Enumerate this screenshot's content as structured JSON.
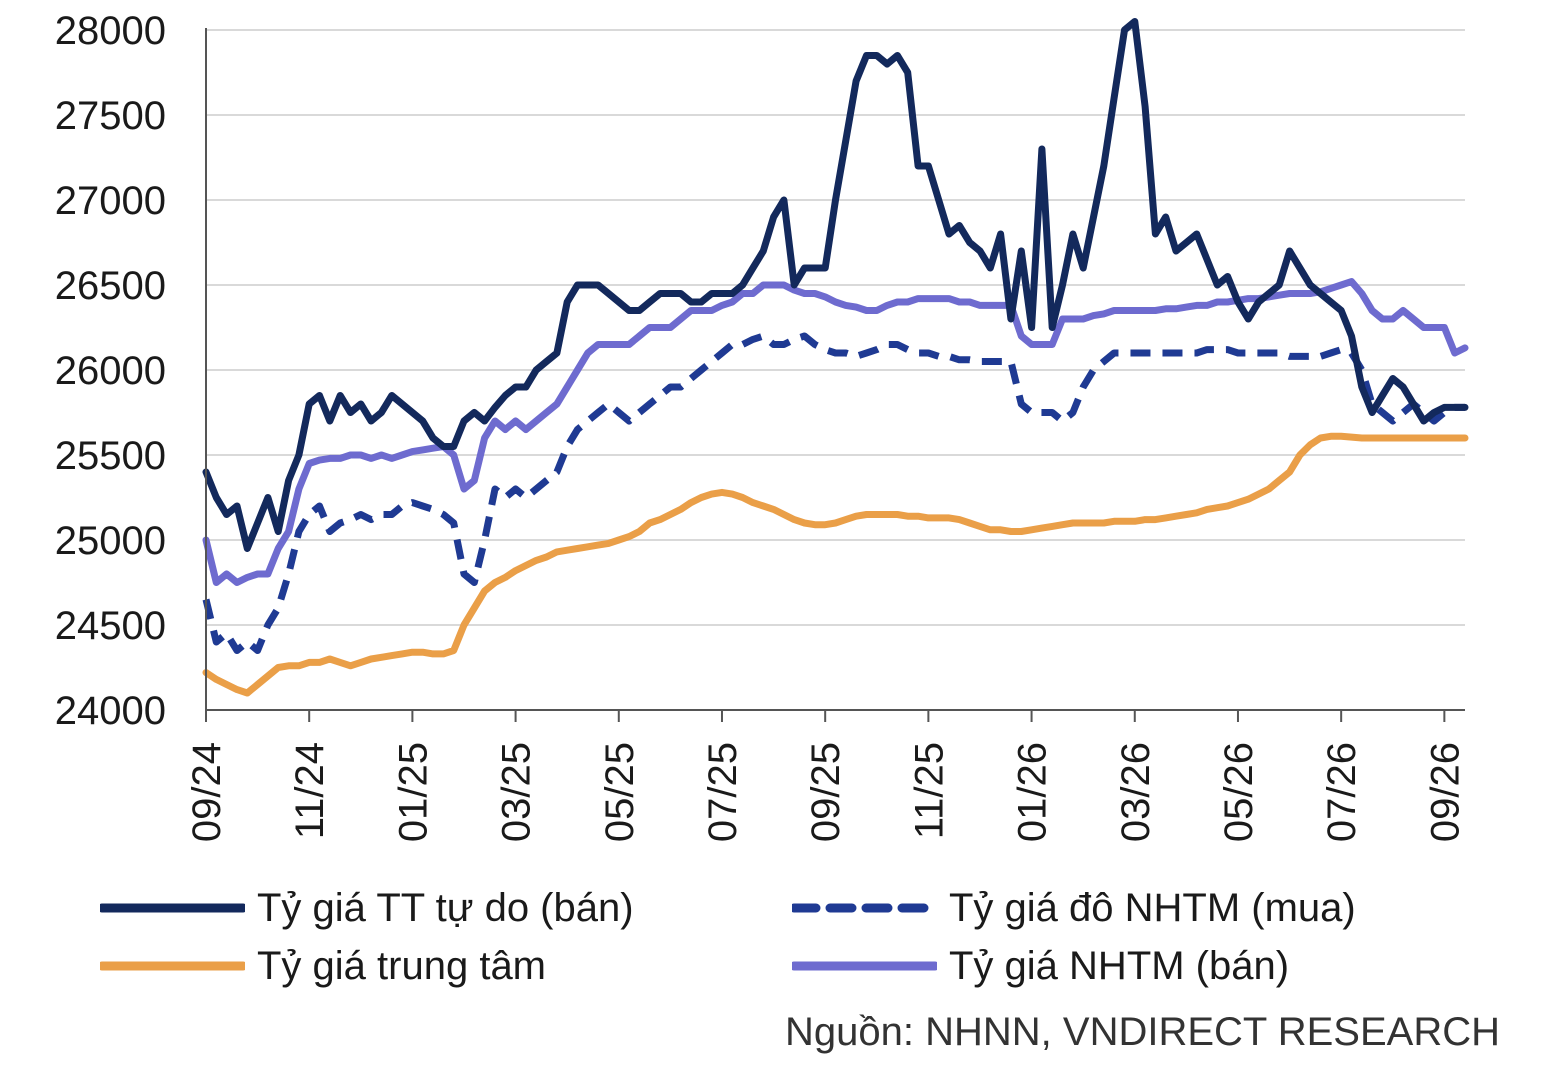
{
  "chart_data": {
    "type": "line",
    "title": "",
    "xlabel": "",
    "ylabel": "",
    "ylim": [
      24000,
      28000
    ],
    "yticks": [
      24000,
      24500,
      25000,
      25500,
      26000,
      26500,
      27000,
      27500,
      28000
    ],
    "xticks": [
      "09/24",
      "11/24",
      "01/25",
      "03/25",
      "05/25",
      "07/25",
      "09/25",
      "11/25",
      "01/26",
      "03/26",
      "05/26",
      "07/26",
      "09/26"
    ],
    "xrange_months": [
      0,
      24.4
    ],
    "grid": "horizontal",
    "legend_position": "bottom",
    "series": [
      {
        "name": "Tỷ giá TT tự do (bán)",
        "color": "#13295c",
        "style": "solid",
        "x": [
          0,
          0.2,
          0.4,
          0.6,
          0.8,
          1.0,
          1.2,
          1.4,
          1.6,
          1.8,
          2.0,
          2.2,
          2.4,
          2.6,
          2.8,
          3.0,
          3.2,
          3.4,
          3.6,
          3.8,
          4.0,
          4.2,
          4.4,
          4.6,
          4.8,
          5.0,
          5.2,
          5.4,
          5.6,
          5.8,
          6.0,
          6.2,
          6.4,
          6.6,
          6.8,
          7.0,
          7.2,
          7.4,
          7.6,
          7.8,
          8.0,
          8.2,
          8.4,
          8.6,
          8.8,
          9.0,
          9.2,
          9.4,
          9.6,
          9.8,
          10.0,
          10.2,
          10.4,
          10.6,
          10.8,
          11.0,
          11.2,
          11.4,
          11.6,
          11.8,
          12.0,
          12.2,
          12.4,
          12.6,
          12.8,
          13.0,
          13.2,
          13.4,
          13.6,
          13.8,
          14.0,
          14.2,
          14.4,
          14.6,
          14.8,
          15.0,
          15.2,
          15.4,
          15.6,
          15.8,
          16.0,
          16.2,
          16.4,
          16.6,
          16.8,
          17.0,
          17.2,
          17.4,
          17.6,
          17.8,
          18.0,
          18.2,
          18.4,
          18.6,
          18.8,
          19.0,
          19.2,
          19.4,
          19.6,
          19.8,
          20.0,
          20.2,
          20.4,
          20.6,
          20.8,
          21.0,
          21.2,
          21.4,
          21.6,
          21.8,
          22.0,
          22.2,
          22.4,
          22.6,
          22.8,
          23.0,
          23.2,
          23.4,
          23.6,
          23.8,
          24.0,
          24.2,
          24.4
        ],
        "values": [
          25400,
          25250,
          25150,
          25200,
          24950,
          25100,
          25250,
          25050,
          25350,
          25500,
          25800,
          25850,
          25700,
          25850,
          25750,
          25800,
          25700,
          25750,
          25850,
          25800,
          25750,
          25700,
          25600,
          25550,
          25550,
          25700,
          25750,
          25700,
          25780,
          25850,
          25900,
          25900,
          26000,
          26050,
          26100,
          26400,
          26500,
          26500,
          26500,
          26450,
          26400,
          26350,
          26350,
          26400,
          26450,
          26450,
          26450,
          26400,
          26400,
          26450,
          26450,
          26450,
          26500,
          26600,
          26700,
          26900,
          27000,
          26500,
          26600,
          26600,
          26600,
          27000,
          27350,
          27700,
          27850,
          27850,
          27800,
          27850,
          27750,
          27200,
          27200,
          27000,
          26800,
          26850,
          26750,
          26700,
          26600,
          26800,
          26300,
          26700,
          26250,
          27300,
          26250,
          26500,
          26800,
          26600,
          26900,
          27200,
          27600,
          28000,
          28050,
          27550,
          26800,
          26900,
          26700,
          26750,
          26800,
          26650,
          26500,
          26550,
          26400,
          26300,
          26400,
          26450,
          26500,
          26700,
          26600,
          26500,
          26450,
          26400,
          26350,
          26200,
          25900,
          25750,
          25850,
          25950,
          25900,
          25800,
          25700,
          25750,
          25780,
          25780,
          25780
        ]
      },
      {
        "name": "Tỷ giá đô NHTM (mua)",
        "color": "#1f3a93",
        "style": "dashed",
        "x": [
          0,
          0.2,
          0.4,
          0.6,
          0.8,
          1.0,
          1.2,
          1.4,
          1.6,
          1.8,
          2.0,
          2.2,
          2.4,
          2.6,
          2.8,
          3.0,
          3.2,
          3.4,
          3.6,
          3.8,
          4.0,
          4.2,
          4.4,
          4.6,
          4.8,
          5.0,
          5.2,
          5.4,
          5.6,
          5.8,
          6.0,
          6.2,
          6.4,
          6.6,
          6.8,
          7.0,
          7.2,
          7.4,
          7.6,
          7.8,
          8.0,
          8.2,
          8.4,
          8.6,
          8.8,
          9.0,
          9.2,
          9.4,
          9.6,
          9.8,
          10.0,
          10.2,
          10.4,
          10.6,
          10.8,
          11.0,
          11.2,
          11.4,
          11.6,
          11.8,
          12.0,
          12.2,
          12.4,
          12.6,
          12.8,
          13.0,
          13.2,
          13.4,
          13.6,
          13.8,
          14.0,
          14.2,
          14.4,
          14.6,
          14.8,
          15.0,
          15.2,
          15.4,
          15.6,
          15.8,
          16.0,
          16.2,
          16.4,
          16.6,
          16.8,
          17.0,
          17.2,
          17.4,
          17.6,
          17.8,
          18.0,
          18.2,
          18.4,
          18.6,
          18.8,
          19.0,
          19.2,
          19.4,
          19.6,
          19.8,
          20.0,
          20.2,
          20.4,
          20.6,
          20.8,
          21.0,
          21.2,
          21.4,
          21.6,
          21.8,
          22.0,
          22.2,
          22.4,
          22.6,
          22.8,
          23.0,
          23.2,
          23.4,
          23.6,
          23.8,
          24.0,
          24.2,
          24.4
        ],
        "values": [
          24650,
          24400,
          24450,
          24350,
          24400,
          24350,
          24500,
          24600,
          24800,
          25050,
          25150,
          25200,
          25050,
          25100,
          25120,
          25150,
          25120,
          25150,
          25150,
          25200,
          25220,
          25200,
          25180,
          25150,
          25100,
          24800,
          24750,
          25000,
          25300,
          25250,
          25300,
          25250,
          25300,
          25350,
          25400,
          25550,
          25650,
          25700,
          25750,
          25800,
          25750,
          25700,
          25750,
          25800,
          25850,
          25900,
          25900,
          25950,
          26000,
          26050,
          26100,
          26150,
          26150,
          26180,
          26200,
          26150,
          26150,
          26180,
          26200,
          26150,
          26120,
          26100,
          26100,
          26080,
          26100,
          26120,
          26150,
          26150,
          26120,
          26100,
          26100,
          26080,
          26080,
          26060,
          26060,
          26050,
          26050,
          26050,
          26050,
          25800,
          25750,
          25750,
          25750,
          25700,
          25750,
          25900,
          26000,
          26050,
          26100,
          26100,
          26100,
          26100,
          26100,
          26100,
          26100,
          26100,
          26100,
          26120,
          26120,
          26120,
          26100,
          26100,
          26100,
          26100,
          26100,
          26080,
          26080,
          26080,
          26080,
          26100,
          26120,
          26100,
          26000,
          25800,
          25750,
          25700,
          25750,
          25800,
          25750,
          25700,
          25750,
          25780,
          25780
        ]
      },
      {
        "name": "Tỷ giá trung tâm",
        "color": "#ea9f48",
        "style": "solid",
        "x": [
          0,
          0.2,
          0.4,
          0.6,
          0.8,
          1.0,
          1.2,
          1.4,
          1.6,
          1.8,
          2.0,
          2.2,
          2.4,
          2.6,
          2.8,
          3.0,
          3.2,
          3.4,
          3.6,
          3.8,
          4.0,
          4.2,
          4.4,
          4.6,
          4.8,
          5.0,
          5.2,
          5.4,
          5.6,
          5.8,
          6.0,
          6.2,
          6.4,
          6.6,
          6.8,
          7.0,
          7.2,
          7.4,
          7.6,
          7.8,
          8.0,
          8.2,
          8.4,
          8.6,
          8.8,
          9.0,
          9.2,
          9.4,
          9.6,
          9.8,
          10.0,
          10.2,
          10.4,
          10.6,
          10.8,
          11.0,
          11.2,
          11.4,
          11.6,
          11.8,
          12.0,
          12.2,
          12.4,
          12.6,
          12.8,
          13.0,
          13.2,
          13.4,
          13.6,
          13.8,
          14.0,
          14.2,
          14.4,
          14.6,
          14.8,
          15.0,
          15.2,
          15.4,
          15.6,
          15.8,
          16.0,
          16.2,
          16.4,
          16.6,
          16.8,
          17.0,
          17.2,
          17.4,
          17.6,
          17.8,
          18.0,
          18.2,
          18.4,
          18.6,
          18.8,
          19.0,
          19.2,
          19.4,
          19.6,
          19.8,
          20.0,
          20.2,
          20.4,
          20.6,
          20.8,
          21.0,
          21.2,
          21.4,
          21.6,
          21.8,
          22.0,
          22.2,
          22.4,
          22.6,
          22.8,
          23.0,
          23.2,
          23.4,
          23.6,
          23.8,
          24.0,
          24.2,
          24.4
        ],
        "values": [
          24220,
          24180,
          24150,
          24120,
          24100,
          24150,
          24200,
          24250,
          24260,
          24260,
          24280,
          24280,
          24300,
          24280,
          24260,
          24280,
          24300,
          24310,
          24320,
          24330,
          24340,
          24340,
          24330,
          24330,
          24350,
          24500,
          24600,
          24700,
          24750,
          24780,
          24820,
          24850,
          24880,
          24900,
          24930,
          24940,
          24950,
          24960,
          24970,
          24980,
          25000,
          25020,
          25050,
          25100,
          25120,
          25150,
          25180,
          25220,
          25250,
          25270,
          25280,
          25270,
          25250,
          25220,
          25200,
          25180,
          25150,
          25120,
          25100,
          25090,
          25090,
          25100,
          25120,
          25140,
          25150,
          25150,
          25150,
          25150,
          25140,
          25140,
          25130,
          25130,
          25130,
          25120,
          25100,
          25080,
          25060,
          25060,
          25050,
          25050,
          25060,
          25070,
          25080,
          25090,
          25100,
          25100,
          25100,
          25100,
          25110,
          25110,
          25110,
          25120,
          25120,
          25130,
          25140,
          25150,
          25160,
          25180,
          25190,
          25200,
          25220,
          25240,
          25270,
          25300,
          25350,
          25400,
          25500,
          25560,
          25600,
          25610,
          25610,
          25605,
          25600,
          25600,
          25600,
          25600,
          25600,
          25600,
          25600,
          25600,
          25600,
          25600,
          25600
        ]
      },
      {
        "name": "Tỷ giá NHTM (bán)",
        "color": "#6e6bcf",
        "style": "solid",
        "x": [
          0,
          0.2,
          0.4,
          0.6,
          0.8,
          1.0,
          1.2,
          1.4,
          1.6,
          1.8,
          2.0,
          2.2,
          2.4,
          2.6,
          2.8,
          3.0,
          3.2,
          3.4,
          3.6,
          3.8,
          4.0,
          4.2,
          4.4,
          4.6,
          4.8,
          5.0,
          5.2,
          5.4,
          5.6,
          5.8,
          6.0,
          6.2,
          6.4,
          6.6,
          6.8,
          7.0,
          7.2,
          7.4,
          7.6,
          7.8,
          8.0,
          8.2,
          8.4,
          8.6,
          8.8,
          9.0,
          9.2,
          9.4,
          9.6,
          9.8,
          10.0,
          10.2,
          10.4,
          10.6,
          10.8,
          11.0,
          11.2,
          11.4,
          11.6,
          11.8,
          12.0,
          12.2,
          12.4,
          12.6,
          12.8,
          13.0,
          13.2,
          13.4,
          13.6,
          13.8,
          14.0,
          14.2,
          14.4,
          14.6,
          14.8,
          15.0,
          15.2,
          15.4,
          15.6,
          15.8,
          16.0,
          16.2,
          16.4,
          16.6,
          16.8,
          17.0,
          17.2,
          17.4,
          17.6,
          17.8,
          18.0,
          18.2,
          18.4,
          18.6,
          18.8,
          19.0,
          19.2,
          19.4,
          19.6,
          19.8,
          20.0,
          20.2,
          20.4,
          20.6,
          20.8,
          21.0,
          21.2,
          21.4,
          21.6,
          21.8,
          22.0,
          22.2,
          22.4,
          22.6,
          22.8,
          23.0,
          23.2,
          23.4,
          23.6,
          23.8,
          24.0,
          24.2,
          24.4
        ],
        "values": [
          25000,
          24750,
          24800,
          24750,
          24780,
          24800,
          24800,
          24950,
          25050,
          25300,
          25450,
          25470,
          25480,
          25480,
          25500,
          25500,
          25480,
          25500,
          25480,
          25500,
          25520,
          25530,
          25540,
          25550,
          25500,
          25300,
          25350,
          25600,
          25700,
          25650,
          25700,
          25650,
          25700,
          25750,
          25800,
          25900,
          26000,
          26100,
          26150,
          26150,
          26150,
          26150,
          26200,
          26250,
          26250,
          26250,
          26300,
          26350,
          26350,
          26350,
          26380,
          26400,
          26450,
          26450,
          26500,
          26500,
          26500,
          26470,
          26450,
          26450,
          26430,
          26400,
          26380,
          26370,
          26350,
          26350,
          26380,
          26400,
          26400,
          26420,
          26420,
          26420,
          26420,
          26400,
          26400,
          26380,
          26380,
          26380,
          26380,
          26200,
          26150,
          26150,
          26150,
          26300,
          26300,
          26300,
          26320,
          26330,
          26350,
          26350,
          26350,
          26350,
          26350,
          26360,
          26360,
          26370,
          26380,
          26380,
          26400,
          26400,
          26410,
          26420,
          26420,
          26430,
          26440,
          26450,
          26450,
          26450,
          26460,
          26480,
          26500,
          26520,
          26450,
          26350,
          26300,
          26300,
          26350,
          26300,
          26250,
          26250,
          26250,
          26100,
          26130
        ]
      }
    ]
  },
  "legend": [
    {
      "label": "Tỷ giá TT tự do (bán)",
      "color": "#13295c",
      "style": "solid"
    },
    {
      "label": "Tỷ giá đô NHTM (mua)",
      "color": "#1f3a93",
      "style": "dashed"
    },
    {
      "label": "Tỷ giá trung tâm",
      "color": "#ea9f48",
      "style": "solid"
    },
    {
      "label": "Tỷ giá NHTM (bán)",
      "color": "#6e6bcf",
      "style": "solid"
    }
  ],
  "source": "Nguồn: NHNN, VNDIRECT RESEARCH"
}
